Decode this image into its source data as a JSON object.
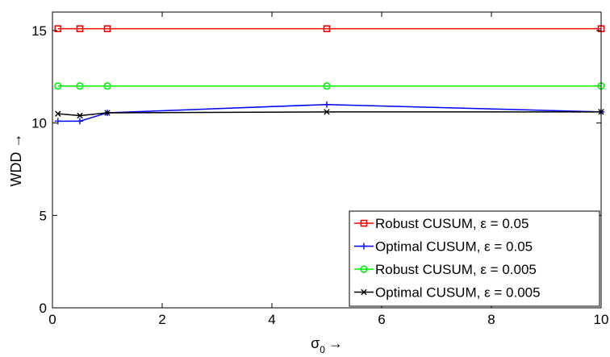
{
  "chart_data": {
    "type": "line",
    "title": "",
    "xlabel": "σ",
    "xlabel_sub": "0",
    "xlabel_arrow": "→",
    "ylabel": "WDD →",
    "xlim": [
      0,
      10
    ],
    "ylim": [
      0,
      16
    ],
    "xticks": [
      "0",
      "2",
      "4",
      "6",
      "8",
      "10"
    ],
    "yticks": [
      "0",
      "5",
      "10",
      "15"
    ],
    "grid": false,
    "legend_position": "bottom-right",
    "x": [
      0.1,
      0.5,
      1,
      5,
      10
    ],
    "series": [
      {
        "name": "Robust CUSUM, ε = 0.05",
        "color": "#ff0000",
        "marker": "square",
        "values": [
          15.1,
          15.1,
          15.1,
          15.1,
          15.1
        ]
      },
      {
        "name": "Optimal CUSUM, ε = 0.05",
        "color": "#0000ff",
        "marker": "plus",
        "values": [
          10.1,
          10.1,
          10.55,
          11.0,
          10.6
        ]
      },
      {
        "name": "Robust CUSUM, ε = 0.005",
        "color": "#00ee00",
        "marker": "circle",
        "values": [
          12.0,
          12.0,
          12.0,
          12.0,
          12.0
        ]
      },
      {
        "name": "Optimal CUSUM, ε = 0.005",
        "color": "#000000",
        "marker": "x",
        "values": [
          10.5,
          10.4,
          10.55,
          10.6,
          10.6
        ]
      }
    ]
  }
}
